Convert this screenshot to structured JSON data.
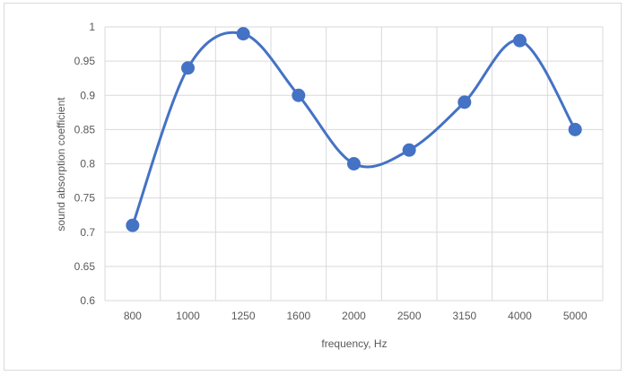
{
  "chart_data": {
    "type": "line",
    "smooth": true,
    "title": "",
    "xlabel": "frequency, Hz",
    "ylabel": "sound absorption coefficient",
    "categories": [
      "800",
      "1000",
      "1250",
      "1600",
      "2000",
      "2500",
      "3150",
      "4000",
      "5000"
    ],
    "series": [
      {
        "values": [
          0.71,
          0.94,
          0.99,
          0.9,
          0.8,
          0.82,
          0.89,
          0.98,
          0.85
        ]
      }
    ],
    "ylim": [
      0.6,
      1
    ],
    "ytick_step": 0.05,
    "yticks": [
      "0.6",
      "0.65",
      "0.7",
      "0.75",
      "0.8",
      "0.85",
      "0.9",
      "0.95",
      "1"
    ],
    "grid": {
      "horizontal": true,
      "vertical": true
    },
    "legend": "none",
    "colors": {
      "line": "#4472c4",
      "marker": "#4472c4",
      "grid": "#d9d9d9",
      "text": "#595959"
    }
  }
}
